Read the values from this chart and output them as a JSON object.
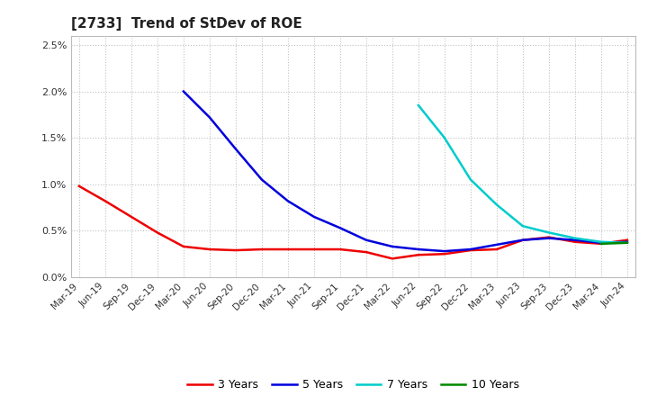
{
  "title": "[2733]  Trend of StDev of ROE",
  "title_fontsize": 11,
  "background_color": "#ffffff",
  "plot_bg_color": "#ffffff",
  "grid_color": "#bbbbbb",
  "ylim": [
    0.0,
    0.026
  ],
  "yticks": [
    0.0,
    0.005,
    0.01,
    0.015,
    0.02,
    0.025
  ],
  "x_labels": [
    "Mar-19",
    "Jun-19",
    "Sep-19",
    "Dec-19",
    "Mar-20",
    "Jun-20",
    "Sep-20",
    "Dec-20",
    "Mar-21",
    "Jun-21",
    "Sep-21",
    "Dec-21",
    "Mar-22",
    "Jun-22",
    "Sep-22",
    "Dec-22",
    "Mar-23",
    "Jun-23",
    "Sep-23",
    "Dec-23",
    "Mar-24",
    "Jun-24"
  ],
  "series": [
    {
      "key": "3y",
      "label": "3 Years",
      "color": "#ee0000",
      "values": [
        0.0098,
        0.0082,
        0.0065,
        0.0048,
        0.0033,
        0.003,
        0.0029,
        0.003,
        0.003,
        0.003,
        0.003,
        0.0027,
        0.002,
        0.0024,
        0.0025,
        0.0029,
        0.003,
        0.004,
        0.0043,
        0.0038,
        0.0036,
        0.004
      ]
    },
    {
      "key": "5y",
      "label": "5 Years",
      "color": "#0000dd",
      "values": [
        null,
        null,
        null,
        null,
        0.02,
        0.0172,
        0.0138,
        0.0105,
        0.0082,
        0.0065,
        0.0053,
        0.004,
        0.0033,
        0.003,
        0.0028,
        0.003,
        0.0035,
        0.004,
        0.0042,
        0.004,
        0.0037,
        0.0038
      ]
    },
    {
      "key": "7y",
      "label": "7 Years",
      "color": "#00cccc",
      "values": [
        null,
        null,
        null,
        null,
        null,
        null,
        null,
        null,
        null,
        null,
        null,
        null,
        null,
        0.0185,
        0.015,
        0.0105,
        0.0078,
        0.0055,
        0.0048,
        0.0042,
        0.0038,
        0.0037
      ]
    },
    {
      "key": "10y",
      "label": "10 Years",
      "color": "#008800",
      "values": [
        null,
        null,
        null,
        null,
        null,
        null,
        null,
        null,
        null,
        null,
        null,
        null,
        null,
        null,
        null,
        null,
        null,
        null,
        null,
        null,
        0.0036,
        0.0037
      ]
    }
  ],
  "linewidth": 1.8
}
